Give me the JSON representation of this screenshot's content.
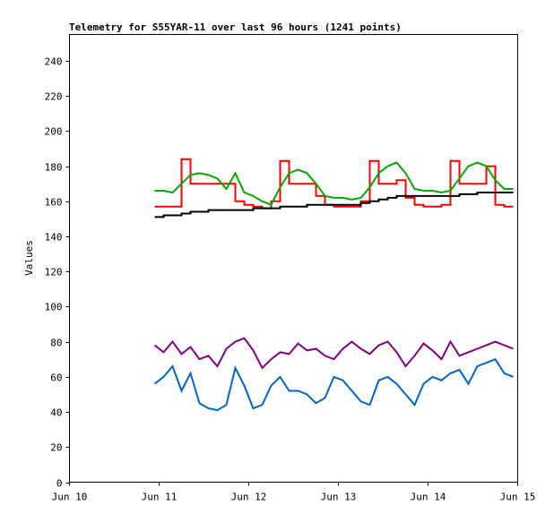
{
  "chart_data": {
    "type": "line",
    "title": "Telemetry for S55YAR-11 over last 96 hours (1241 points)",
    "xlabel": "",
    "ylabel": "Values",
    "xlim": [
      0,
      5
    ],
    "ylim": [
      0,
      255
    ],
    "x_unit": "days since Jun 10",
    "x_ticks": [
      0,
      1,
      2,
      3,
      4,
      5
    ],
    "x_tick_labels": [
      "Jun 10",
      "Jun 11",
      "Jun 12",
      "Jun 13",
      "Jun 14",
      "Jun 15"
    ],
    "y_ticks": [
      0,
      20,
      40,
      60,
      80,
      100,
      120,
      140,
      160,
      180,
      200,
      220,
      240
    ],
    "grid": false,
    "x": [
      0.95,
      1.05,
      1.15,
      1.25,
      1.35,
      1.45,
      1.55,
      1.65,
      1.75,
      1.85,
      1.95,
      2.05,
      2.15,
      2.25,
      2.35,
      2.45,
      2.55,
      2.65,
      2.75,
      2.85,
      2.95,
      3.05,
      3.15,
      3.25,
      3.35,
      3.45,
      3.55,
      3.65,
      3.75,
      3.85,
      3.95,
      4.05,
      4.15,
      4.25,
      4.35,
      4.45,
      4.55,
      4.65,
      4.75,
      4.85,
      4.95
    ],
    "series": [
      {
        "name": "red",
        "color": "#ff0000",
        "values": [
          157,
          157,
          157,
          184,
          170,
          170,
          170,
          170,
          170,
          160,
          158,
          157,
          156,
          160,
          183,
          170,
          170,
          170,
          163,
          158,
          157,
          157,
          157,
          160,
          183,
          170,
          170,
          172,
          162,
          158,
          157,
          157,
          158,
          183,
          170,
          170,
          170,
          180,
          158,
          157,
          157
        ]
      },
      {
        "name": "green",
        "color": "#00aa00",
        "values": [
          166,
          166,
          165,
          170,
          175,
          176,
          175,
          173,
          167,
          176,
          165,
          163,
          160,
          158,
          168,
          176,
          178,
          176,
          170,
          163,
          162,
          162,
          161,
          162,
          168,
          176,
          180,
          182,
          176,
          167,
          166,
          166,
          165,
          166,
          173,
          180,
          182,
          180,
          172,
          167,
          167
        ]
      },
      {
        "name": "black",
        "color": "#000000",
        "values": [
          151,
          152,
          152,
          153,
          154,
          154,
          155,
          155,
          155,
          155,
          155,
          156,
          156,
          156,
          157,
          157,
          157,
          158,
          158,
          158,
          158,
          158,
          158,
          159,
          160,
          161,
          162,
          163,
          163,
          163,
          163,
          163,
          163,
          163,
          164,
          164,
          165,
          165,
          165,
          165,
          165
        ]
      },
      {
        "name": "purple",
        "color": "#800080",
        "values": [
          78,
          74,
          80,
          73,
          77,
          70,
          72,
          66,
          76,
          80,
          82,
          75,
          65,
          70,
          74,
          73,
          79,
          75,
          76,
          72,
          70,
          76,
          80,
          76,
          73,
          78,
          80,
          74,
          66,
          72,
          79,
          75,
          70,
          80,
          72,
          74,
          76,
          78,
          80,
          78,
          76
        ]
      },
      {
        "name": "blue",
        "color": "#0066cc",
        "values": [
          56,
          60,
          66,
          52,
          62,
          45,
          42,
          41,
          44,
          65,
          55,
          42,
          44,
          55,
          60,
          52,
          52,
          50,
          45,
          48,
          60,
          58,
          52,
          46,
          44,
          58,
          60,
          56,
          50,
          44,
          56,
          60,
          58,
          62,
          64,
          56,
          66,
          68,
          70,
          62,
          60
        ]
      }
    ]
  }
}
